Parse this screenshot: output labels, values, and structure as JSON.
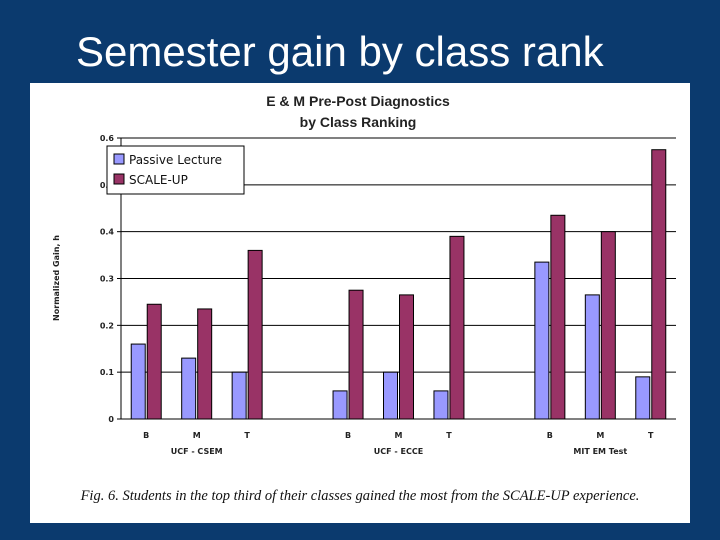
{
  "slide": {
    "title": "Semester gain by class rank"
  },
  "caption": "Fig. 6. Students in the top third of their classes gained the most from the SCALE-UP experience.",
  "colors": {
    "background": "#0b3a6e",
    "series": [
      "#9999ff",
      "#993366"
    ]
  },
  "chart_data": {
    "type": "bar",
    "title": "E & M Pre-Post Diagnostics",
    "subtitle": "by Class Ranking",
    "ylabel": "Normalized Gain, h",
    "xlabel": "",
    "ylim": [
      0,
      0.6
    ],
    "yticks": [
      "0",
      "0.1",
      "0.2",
      "0.3",
      "0.4",
      "0.5",
      "0.6"
    ],
    "grid": true,
    "legend_position": "top-left",
    "groups": [
      {
        "label": "UCF - CSEM",
        "categories": [
          "B",
          "M",
          "T"
        ]
      },
      {
        "label": "UCF - ECCE",
        "categories": [
          "B",
          "M",
          "T"
        ]
      },
      {
        "label": "MIT EM Test",
        "categories": [
          "B",
          "M",
          "T"
        ]
      }
    ],
    "series": [
      {
        "name": "Passive Lecture",
        "color": "#9999ff",
        "values": [
          0.16,
          0.13,
          0.1,
          0.06,
          0.1,
          0.06,
          0.335,
          0.265,
          0.09
        ]
      },
      {
        "name": "SCALE-UP",
        "color": "#993366",
        "values": [
          0.245,
          0.235,
          0.36,
          0.275,
          0.265,
          0.39,
          0.435,
          0.4,
          0.575
        ]
      }
    ]
  }
}
